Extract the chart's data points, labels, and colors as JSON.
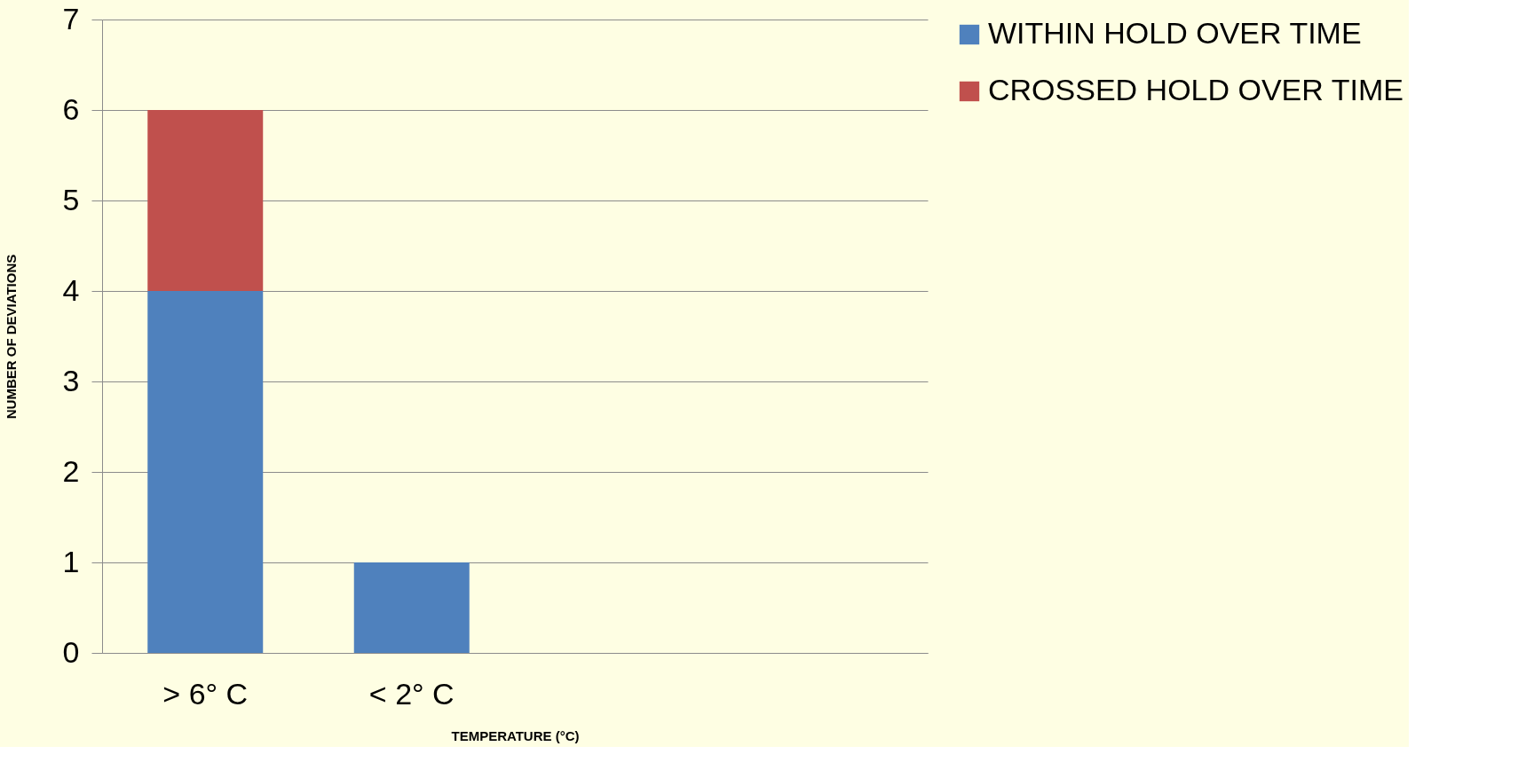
{
  "chart_data": {
    "type": "bar",
    "stacked": true,
    "xlabel": "TEMPERATURE (°C)",
    "ylabel": "NUMBER OF DEVIATIONS",
    "categories": [
      "> 6° C",
      "< 2° C",
      null,
      null
    ],
    "series": [
      {
        "name": "WITHIN HOLD OVER TIME",
        "color": "#4f81bd",
        "values": [
          4,
          1,
          null,
          null
        ]
      },
      {
        "name": "CROSSED HOLD OVER TIME",
        "color": "#c0504d",
        "values": [
          2,
          null,
          null,
          null
        ]
      }
    ],
    "ylim": [
      0,
      7
    ],
    "yticks": [
      0,
      1,
      2,
      3,
      4,
      5,
      6,
      7
    ],
    "grid": "y",
    "legend": "right"
  }
}
